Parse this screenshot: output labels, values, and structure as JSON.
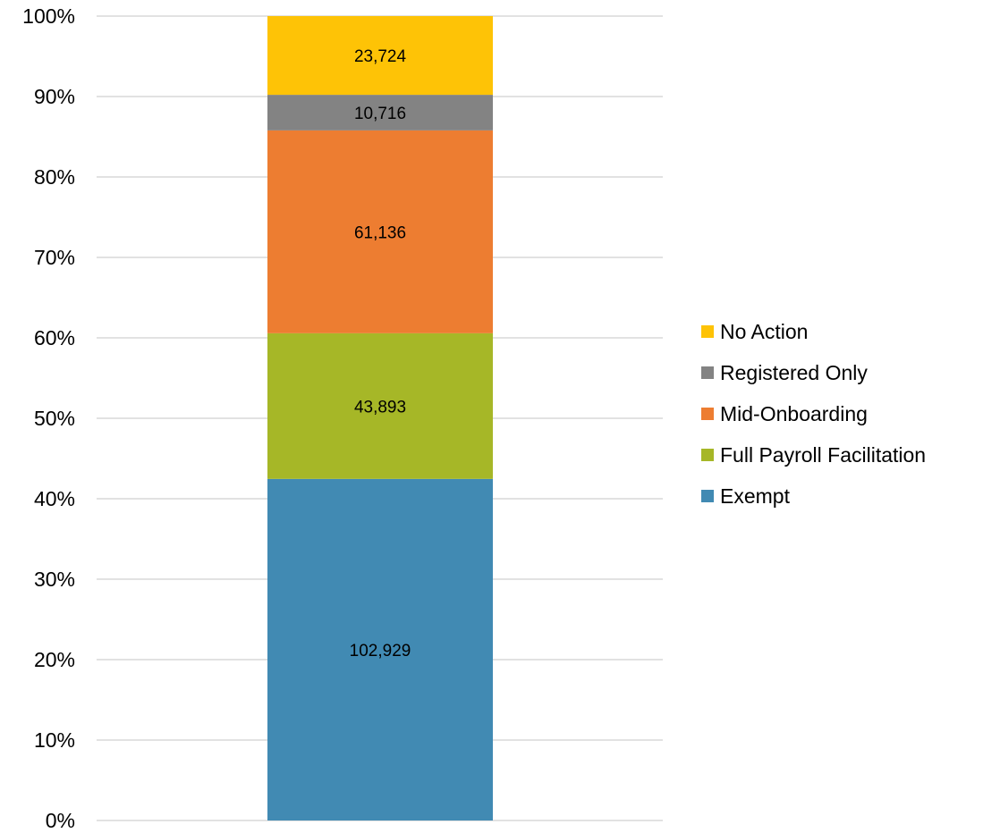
{
  "chart_data": {
    "type": "bar",
    "stacked": "percent",
    "title": "",
    "xlabel": "",
    "ylabel": "",
    "ylim": [
      0,
      100
    ],
    "y_ticks": [
      "0%",
      "10%",
      "20%",
      "30%",
      "40%",
      "50%",
      "60%",
      "70%",
      "80%",
      "90%",
      "100%"
    ],
    "grid": true,
    "legend_position": "right",
    "categories": [
      ""
    ],
    "series": [
      {
        "name": "Exempt",
        "values": [
          102929
        ],
        "label": "102,929",
        "color": "#418ab3"
      },
      {
        "name": "Full Payroll Facilitation",
        "values": [
          43893
        ],
        "label": "43,893",
        "color": "#a6b727"
      },
      {
        "name": "Mid-Onboarding",
        "values": [
          61136
        ],
        "label": "61,136",
        "color": "#ed7d31"
      },
      {
        "name": "Registered Only",
        "values": [
          10716
        ],
        "label": "10,716",
        "color": "#838383"
      },
      {
        "name": "No Action",
        "values": [
          23724
        ],
        "label": "23,724",
        "color": "#fec306"
      }
    ],
    "legend_order": [
      "No Action",
      "Registered Only",
      "Mid-Onboarding",
      "Full Payroll Facilitation",
      "Exempt"
    ]
  }
}
